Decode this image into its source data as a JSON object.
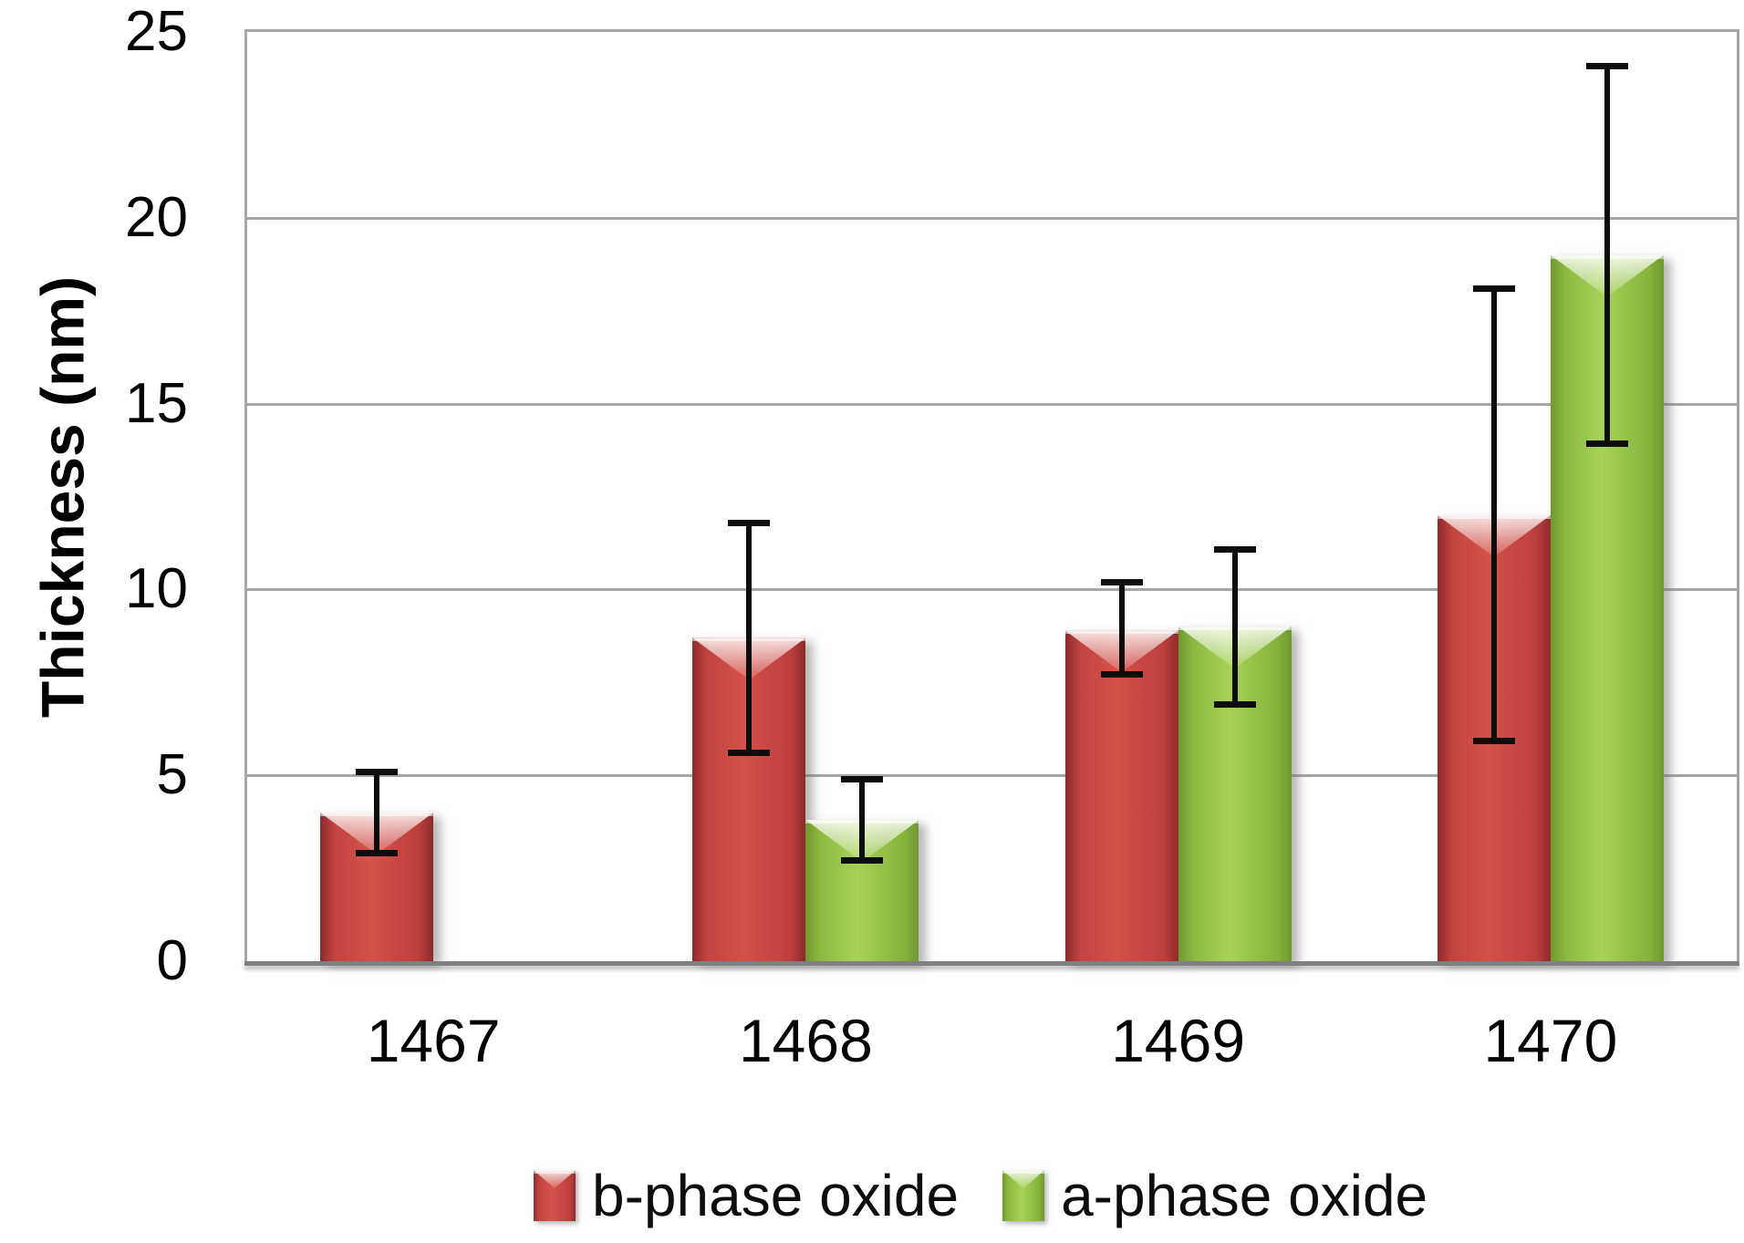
{
  "chart_data": {
    "type": "bar",
    "title": "",
    "ylabel": "Thickness (nm)",
    "xlabel": "",
    "ylim": [
      0,
      25
    ],
    "ytick_interval": 5,
    "yticks": [
      "0",
      "5",
      "10",
      "15",
      "20",
      "25"
    ],
    "categories": [
      "1467",
      "1468",
      "1469",
      "1470"
    ],
    "series": [
      {
        "name": "b-phase oxide",
        "color": "#C0443F",
        "values": [
          4.0,
          8.7,
          8.9,
          12.0
        ],
        "error_low": [
          3.0,
          5.7,
          7.8,
          6.0
        ],
        "error_high": [
          5.0,
          11.7,
          10.1,
          18.0
        ]
      },
      {
        "name": "a-phase oxide",
        "color": "#8FBC3F",
        "values": [
          null,
          3.8,
          9.0,
          19.0
        ],
        "error_low": [
          null,
          2.8,
          7.0,
          14.0
        ],
        "error_high": [
          null,
          4.8,
          11.0,
          24.0
        ]
      }
    ],
    "error_bars": true,
    "error_bar_color": "#000000",
    "grid": "horizontal",
    "gridline_color": "#A6A6A6",
    "axis_line_color": "#7F7F7F",
    "legend_position": "bottom-center",
    "background_color": "#FFFFFF"
  }
}
